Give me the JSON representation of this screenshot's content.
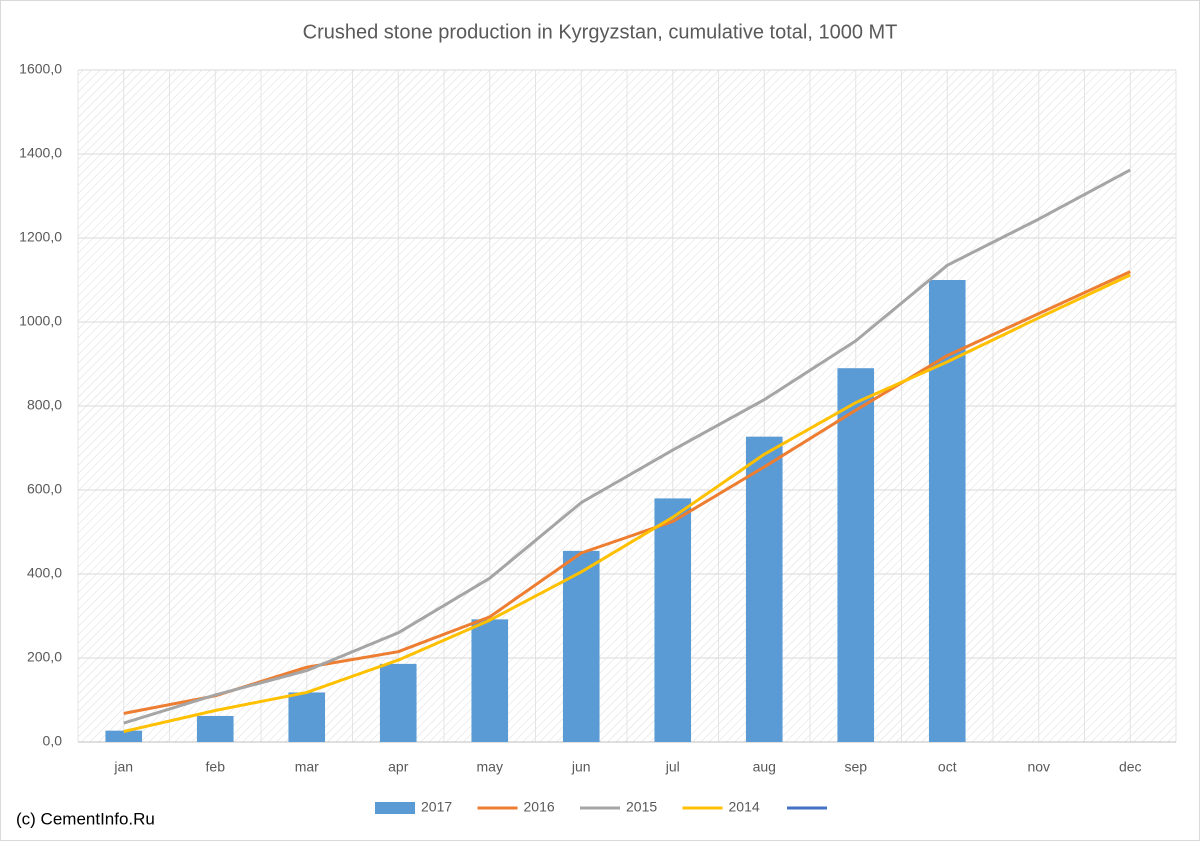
{
  "chart_data": {
    "type": "combo",
    "title": "Crushed stone production in Kyrgyzstan, cumulative total, 1000 MT",
    "footer": "(c) CementInfo.Ru",
    "categories": [
      "jan",
      "feb",
      "mar",
      "apr",
      "may",
      "jun",
      "jul",
      "aug",
      "sep",
      "oct",
      "nov",
      "dec"
    ],
    "series": [
      {
        "name": "2017",
        "type": "bar",
        "color": "#5b9bd5",
        "values": [
          27,
          62,
          118,
          186,
          292,
          455,
          580,
          727,
          890,
          1100,
          null,
          null
        ]
      },
      {
        "name": "2016",
        "type": "line",
        "color": "#ed7d31",
        "values": [
          68,
          110,
          178,
          215,
          298,
          450,
          525,
          655,
          790,
          920,
          1020,
          1120
        ]
      },
      {
        "name": "2015",
        "type": "line",
        "color": "#a5a5a5",
        "values": [
          45,
          112,
          170,
          260,
          390,
          570,
          695,
          815,
          955,
          1135,
          1245,
          1362
        ]
      },
      {
        "name": "2014",
        "type": "line",
        "color": "#ffc000",
        "values": [
          25,
          75,
          118,
          195,
          290,
          405,
          535,
          685,
          808,
          905,
          1010,
          1112
        ]
      }
    ],
    "ylim": [
      0,
      1600
    ],
    "yticks": [
      {
        "value": 0,
        "label": "0,0"
      },
      {
        "value": 200,
        "label": "200,0"
      },
      {
        "value": 400,
        "label": "400,0"
      },
      {
        "value": 600,
        "label": "600,0"
      },
      {
        "value": 800,
        "label": "800,0"
      },
      {
        "value": 1000,
        "label": "1000,0"
      },
      {
        "value": 1200,
        "label": "1200,0"
      },
      {
        "value": 1400,
        "label": "1400,0"
      },
      {
        "value": 1600,
        "label": "1600,0"
      }
    ],
    "grid": true,
    "legend": "bottom"
  }
}
